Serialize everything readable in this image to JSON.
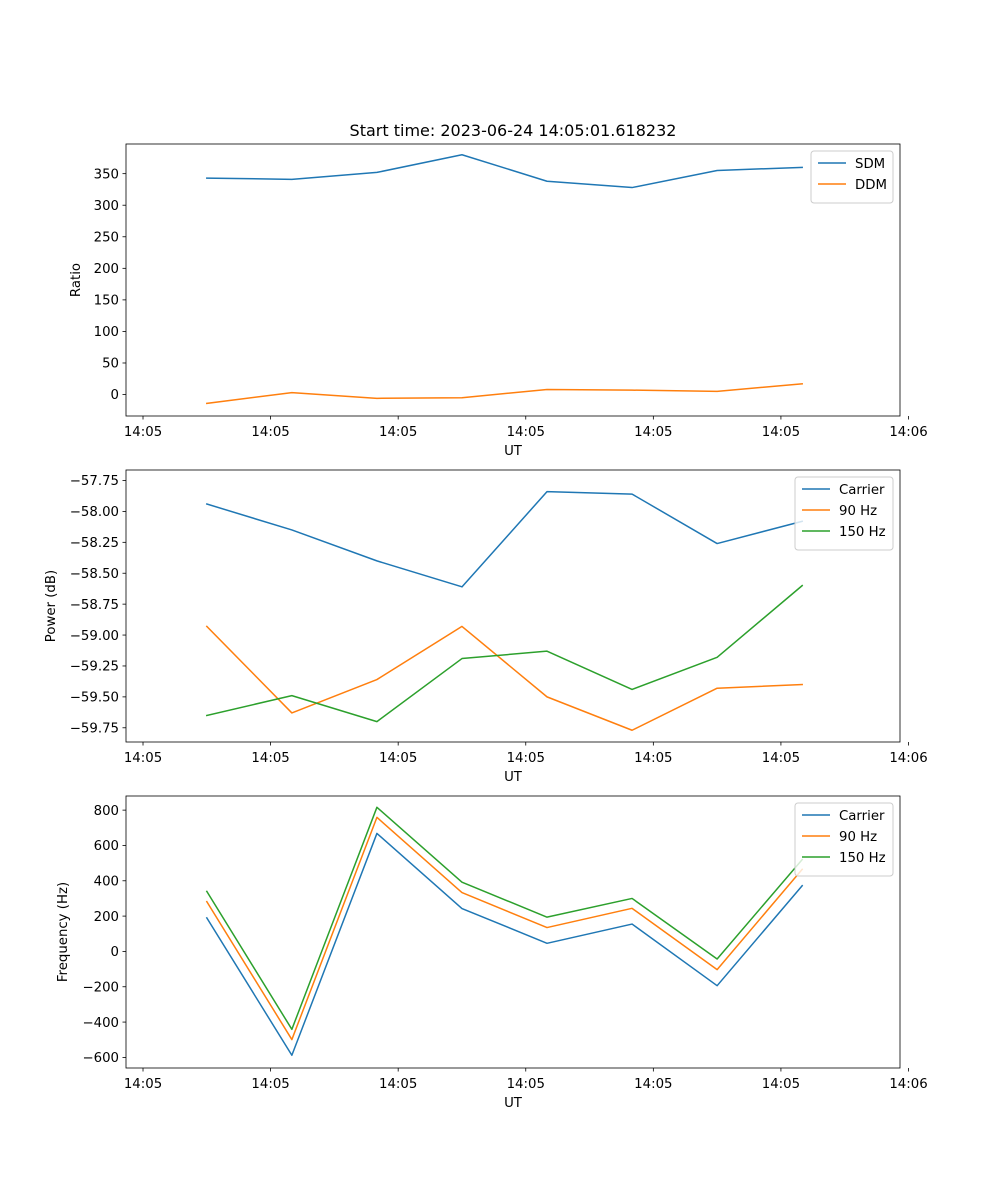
{
  "chart_data": [
    {
      "type": "line",
      "title": "Start time: 2023-06-24 14:05:01.618232",
      "xlabel": "UT",
      "ylabel": "Ratio",
      "ylim": [
        -34,
        397
      ],
      "yticks": [
        "0",
        "50",
        "100",
        "150",
        "200",
        "250",
        "300",
        "350"
      ],
      "ytick_values": [
        0,
        50,
        100,
        150,
        200,
        250,
        300,
        350
      ],
      "xlim": [
        -0.2,
        8.9
      ],
      "xticks": [
        "14:05",
        "14:05",
        "14:05",
        "14:05",
        "14:05",
        "14:05",
        "14:06"
      ],
      "xtick_values": [
        0,
        1.5,
        3,
        4.5,
        6,
        7.5,
        9
      ],
      "x": [
        0.75,
        1.75,
        2.75,
        3.75,
        4.75,
        5.75,
        6.75,
        7.75
      ],
      "legend_position": "upper-right",
      "series": [
        {
          "name": "SDM",
          "color": "#1f77b4",
          "values": [
            343,
            341,
            352,
            380,
            338,
            328,
            355,
            360
          ]
        },
        {
          "name": "DDM",
          "color": "#ff7f0e",
          "values": [
            -14,
            3,
            -6,
            -5,
            8,
            7,
            5,
            17
          ]
        }
      ]
    },
    {
      "type": "line",
      "title": "",
      "xlabel": "UT",
      "ylabel": "Power (dB)",
      "ylim": [
        -59.865,
        -57.665
      ],
      "yticks": [
        "−59.75",
        "−59.50",
        "−59.25",
        "−59.00",
        "−58.75",
        "−58.50",
        "−58.25",
        "−58.00",
        "−57.75"
      ],
      "ytick_values": [
        -59.75,
        -59.5,
        -59.25,
        -59.0,
        -58.75,
        -58.5,
        -58.25,
        -58.0,
        -57.75
      ],
      "xlim": [
        -0.2,
        8.9
      ],
      "xticks": [
        "14:05",
        "14:05",
        "14:05",
        "14:05",
        "14:05",
        "14:05",
        "14:06"
      ],
      "xtick_values": [
        0,
        1.5,
        3,
        4.5,
        6,
        7.5,
        9
      ],
      "x": [
        0.75,
        1.75,
        2.75,
        3.75,
        4.75,
        5.75,
        6.75,
        7.75
      ],
      "legend_position": "upper-right",
      "series": [
        {
          "name": "Carrier",
          "color": "#1f77b4",
          "values": [
            -57.94,
            -58.15,
            -58.4,
            -58.61,
            -57.84,
            -57.86,
            -58.26,
            -58.08
          ]
        },
        {
          "name": "90 Hz",
          "color": "#ff7f0e",
          "values": [
            -58.93,
            -59.63,
            -59.36,
            -58.93,
            -59.5,
            -59.77,
            -59.43,
            -59.4
          ]
        },
        {
          "name": "150 Hz",
          "color": "#2ca02c",
          "values": [
            -59.65,
            -59.49,
            -59.7,
            -59.19,
            -59.13,
            -59.44,
            -59.18,
            -58.6
          ]
        }
      ]
    },
    {
      "type": "line",
      "title": "",
      "xlabel": "UT",
      "ylabel": "Frequency (Hz)",
      "ylim": [
        -660,
        880
      ],
      "yticks": [
        "−600",
        "−400",
        "−200",
        "0",
        "200",
        "400",
        "600",
        "800"
      ],
      "ytick_values": [
        -600,
        -400,
        -200,
        0,
        200,
        400,
        600,
        800
      ],
      "xlim": [
        -0.2,
        8.9
      ],
      "xticks": [
        "14:05",
        "14:05",
        "14:05",
        "14:05",
        "14:05",
        "14:05",
        "14:06"
      ],
      "xtick_values": [
        0,
        1.5,
        3,
        4.5,
        6,
        7.5,
        9
      ],
      "x": [
        0.75,
        1.75,
        2.75,
        3.75,
        4.75,
        5.75,
        6.75,
        7.75
      ],
      "legend_position": "upper-right",
      "series": [
        {
          "name": "Carrier",
          "color": "#1f77b4",
          "values": [
            190,
            -588,
            668,
            243,
            46,
            155,
            -194,
            372
          ]
        },
        {
          "name": "90 Hz",
          "color": "#ff7f0e",
          "values": [
            282,
            -499,
            759,
            333,
            135,
            244,
            -103,
            465
          ]
        },
        {
          "name": "150 Hz",
          "color": "#2ca02c",
          "values": [
            340,
            -441,
            816,
            392,
            194,
            300,
            -43,
            520
          ]
        }
      ]
    }
  ]
}
